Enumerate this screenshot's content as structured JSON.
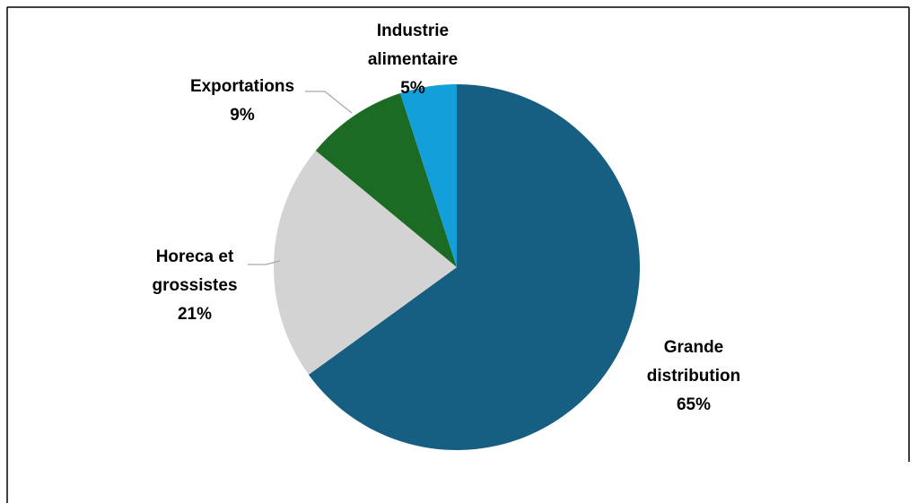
{
  "chart_data": {
    "type": "pie",
    "categories": [
      "Grande distribution",
      "Horeca et grossistes",
      "Exportations",
      "Industrie alimentaire"
    ],
    "values": [
      65,
      21,
      9,
      5
    ],
    "value_labels": [
      "65%",
      "21%",
      "9%",
      "5%"
    ],
    "colors": [
      "#175f82",
      "#d3d3d3",
      "#1b6b24",
      "#139fd9"
    ]
  }
}
